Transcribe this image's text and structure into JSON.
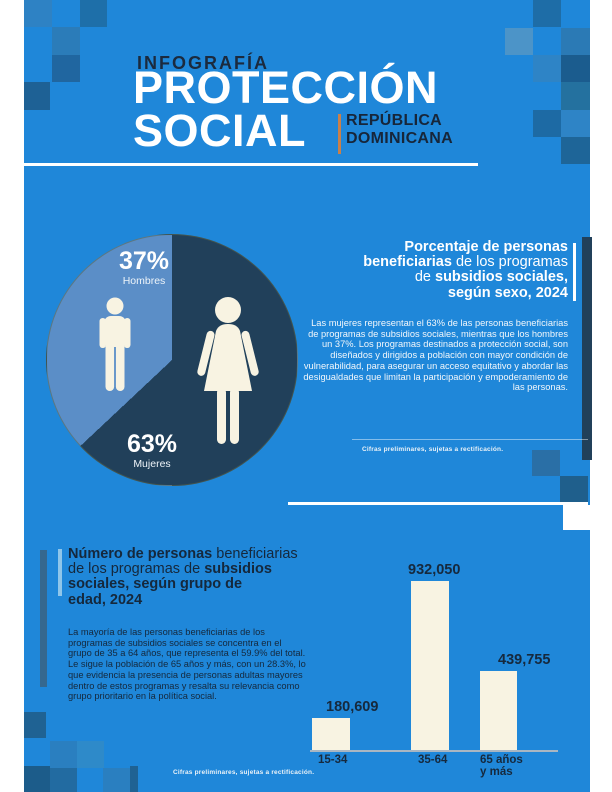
{
  "colors": {
    "background_blue": "#1f87d9",
    "dark_navy": "#16293d",
    "cream": "#f8f3e2",
    "pie_dark": "#21405a",
    "pie_light": "#5b8ec7",
    "accent_orange": "#c9804a",
    "accent_lightblue": "#8fc6ea",
    "axis_gray": "#a9b6c2"
  },
  "header": {
    "kicker": "INFOGRAFÍA",
    "title_line1": "PROTECCIÓN",
    "title_line2": "SOCIAL",
    "region_line1": "REPÚBLICA",
    "region_line2": "DOMINICANA"
  },
  "sex_section": {
    "title_lines": [
      [
        {
          "t": "Porcentaje de personas",
          "b": true
        }
      ],
      [
        {
          "t": "beneficiarias",
          "b": true
        },
        {
          "t": " de los programas",
          "b": false
        }
      ],
      [
        {
          "t": "de ",
          "b": false
        },
        {
          "t": "subsidios sociales,",
          "b": true
        }
      ],
      [
        {
          "t": "según sexo, 2024",
          "b": true
        }
      ]
    ],
    "body": "Las mujeres representan el 63% de las personas beneficiarias de programas de subsidios sociales, mientras que los hombres un 37%. Los programas destinados a protección social, son diseñados y dirigidos a población con mayor condición de vulnerabilidad, para asegurar un acceso equitativo y abordar las desigualdades que limitan la participación y empoderamiento de las personas.",
    "footnote": "Cifras preliminares, sujetas a rectificación."
  },
  "age_section": {
    "title_lines": [
      [
        {
          "t": "Número de personas",
          "b": true
        },
        {
          "t": " beneficiarias",
          "b": false
        }
      ],
      [
        {
          "t": "de los programas de ",
          "b": false
        },
        {
          "t": "subsidios",
          "b": true
        }
      ],
      [
        {
          "t": "sociales, según grupo de",
          "b": true
        }
      ],
      [
        {
          "t": "edad, 2024",
          "b": true
        }
      ]
    ],
    "body": "La mayoría de las personas beneficiarias de los programas de subsidios sociales se concentra en el grupo de 35 a 64 años, que representa el 59.9% del total. Le sigue la población de 65 años y más, con un 28.3%, lo que evidencia la presencia de personas adultas mayores dentro de estos programas y resalta su relevancia como grupo prioritario en la política social.",
    "footnote": "Cifras preliminares, sujetas a rectificación."
  },
  "chart_data": [
    {
      "id": "sex_pie",
      "type": "pie",
      "title": "Porcentaje de personas beneficiarias de los programas de subsidios sociales, según sexo, 2024",
      "unit": "percent",
      "start_angle_deg": 0,
      "direction": "clockwise",
      "slices": [
        {
          "label": "Mujeres",
          "value": 63,
          "pct_label": "63%",
          "color": "#21405a"
        },
        {
          "label": "Hombres",
          "value": 37,
          "pct_label": "37%",
          "color": "#5b8ec7"
        }
      ]
    },
    {
      "id": "age_bar",
      "type": "bar",
      "title": "Número de personas beneficiarias de los programas de subsidios sociales, según grupo de edad, 2024",
      "categories": [
        "15-34",
        "35-64",
        "65 años\ny más"
      ],
      "values": [
        180609,
        932050,
        439755
      ],
      "value_labels": [
        "180,609",
        "932,050",
        "439,755"
      ],
      "bar_color": "#f8f3e2",
      "ylim": [
        0,
        1000000
      ],
      "grid": false,
      "legend": "none"
    }
  ]
}
